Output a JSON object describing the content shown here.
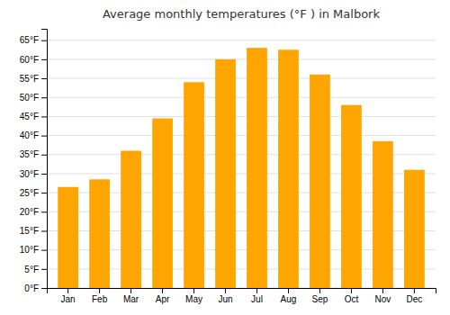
{
  "chart_data": {
    "type": "bar",
    "title": "Average monthly temperatures (°F ) in Malbork",
    "categories": [
      "Jan",
      "Feb",
      "Mar",
      "Apr",
      "May",
      "Jun",
      "Jul",
      "Aug",
      "Sep",
      "Oct",
      "Nov",
      "Dec"
    ],
    "values": [
      26.5,
      28.5,
      36,
      44.5,
      54,
      60,
      63,
      62.5,
      56,
      48,
      38.5,
      31
    ],
    "color": "#FFA500",
    "ylim": [
      0,
      68
    ],
    "yticks": [
      {
        "value": 0,
        "label": "0°F"
      },
      {
        "value": 5,
        "label": "5°F"
      },
      {
        "value": 10,
        "label": "10°F"
      },
      {
        "value": 15,
        "label": "15°F"
      },
      {
        "value": 20,
        "label": "20°F"
      },
      {
        "value": 25,
        "label": "25°F"
      },
      {
        "value": 30,
        "label": "30°F"
      },
      {
        "value": 35,
        "label": "35°F"
      },
      {
        "value": 40,
        "label": "40°F"
      },
      {
        "value": 45,
        "label": "45°F"
      },
      {
        "value": 50,
        "label": "50°F"
      },
      {
        "value": 55,
        "label": "55°F"
      },
      {
        "value": 60,
        "label": "60°F"
      },
      {
        "value": 65,
        "label": "65°F"
      }
    ],
    "grid": true
  }
}
